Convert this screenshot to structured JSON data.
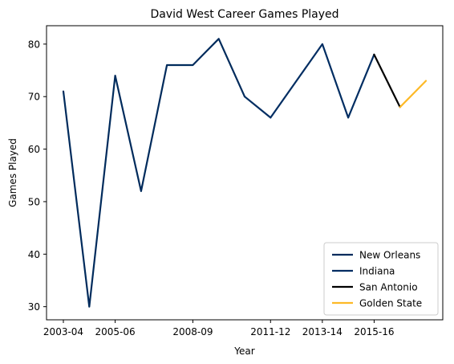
{
  "chart_data": {
    "type": "line",
    "title": "David West  Career Games Played",
    "xlabel": "Year",
    "ylabel": "Games Played",
    "x": [
      "2003-04",
      "2004-05",
      "2005-06",
      "2006-07",
      "2007-08",
      "2008-09",
      "2009-10",
      "2010-11",
      "2011-12",
      "2012-13",
      "2013-14",
      "2014-15",
      "2015-16",
      "2016-17",
      "2017-18"
    ],
    "xticks": [
      "2003-04",
      "2005-06",
      "2008-09",
      "2011-12",
      "2013-14",
      "2015-16"
    ],
    "yticks": [
      30,
      40,
      50,
      60,
      70,
      80
    ],
    "ylim": [
      27.5,
      83.5
    ],
    "grid": false,
    "legend_position": "lower-right",
    "series": [
      {
        "name": "New Orleans",
        "color": "#002b5c",
        "x": [
          "2003-04",
          "2004-05",
          "2005-06",
          "2006-07",
          "2007-08",
          "2008-09",
          "2009-10",
          "2010-11"
        ],
        "values": [
          71,
          30,
          74,
          52,
          76,
          76,
          81,
          70
        ]
      },
      {
        "name": "Indiana",
        "color": "#002d62",
        "x": [
          "2010-11",
          "2011-12",
          "2012-13",
          "2013-14",
          "2014-15",
          "2015-16"
        ],
        "values": [
          70,
          66,
          73,
          80,
          66,
          78
        ]
      },
      {
        "name": "San Antonio",
        "color": "#000000",
        "x": [
          "2015-16",
          "2016-17"
        ],
        "values": [
          78,
          68
        ]
      },
      {
        "name": "Golden State",
        "color": "#fdb927",
        "x": [
          "2016-17",
          "2017-18"
        ],
        "values": [
          68,
          73
        ]
      }
    ]
  }
}
